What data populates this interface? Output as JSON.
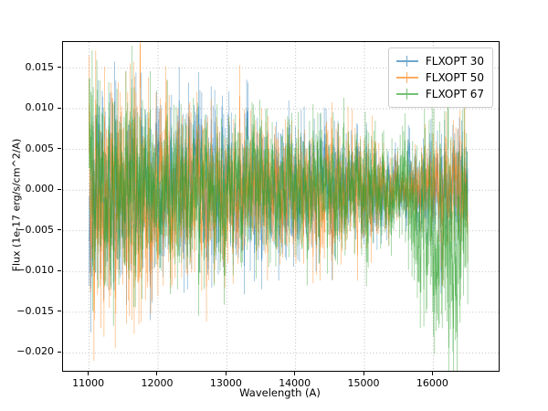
{
  "figure": {
    "background": "#ffffff",
    "spine_color": "#000000"
  },
  "chart_data": {
    "type": "line",
    "title": "",
    "xlabel": "Wavelength (A)",
    "ylabel": "Flux (1e-17 erg/s/cm^2/A)",
    "xlim": [
      10620,
      16950
    ],
    "ylim": [
      -0.0222,
      0.0182
    ],
    "x_range": [
      11000,
      16500
    ],
    "xticks": [
      11000,
      12000,
      13000,
      14000,
      15000,
      16000
    ],
    "yticks": [
      0.015,
      0.01,
      0.005,
      0.0,
      -0.005,
      -0.01,
      -0.015,
      -0.02
    ],
    "grid": true,
    "grid_color": "#b0b0b0",
    "legend_position": "upper right",
    "alpha": 0.5,
    "n_points": 640,
    "plot_style": "errorbar",
    "series": [
      {
        "name": "FLXOPT 30",
        "color": "#1f77b4",
        "seed": 11,
        "envelope": [
          [
            11000,
            0.0055
          ],
          [
            11400,
            0.0048
          ],
          [
            12000,
            0.004
          ],
          [
            12600,
            0.0042
          ],
          [
            13200,
            0.0035
          ],
          [
            14200,
            0.0033
          ],
          [
            15000,
            0.003
          ],
          [
            15500,
            0.0013
          ],
          [
            15750,
            0.0022
          ],
          [
            16000,
            0.0028
          ],
          [
            16500,
            0.003
          ]
        ],
        "bias": [
          [
            11000,
            0.0
          ],
          [
            16500,
            0.0
          ]
        ]
      },
      {
        "name": "FLXOPT 50",
        "color": "#ff7f0e",
        "seed": 52,
        "envelope": [
          [
            11000,
            0.006
          ],
          [
            11500,
            0.0062
          ],
          [
            12000,
            0.0045
          ],
          [
            12800,
            0.0042
          ],
          [
            13500,
            0.0035
          ],
          [
            14500,
            0.0032
          ],
          [
            15200,
            0.003
          ],
          [
            15550,
            0.0013
          ],
          [
            15900,
            0.0026
          ],
          [
            16200,
            0.0033
          ],
          [
            16500,
            0.003
          ]
        ],
        "bias": [
          [
            11000,
            0.0
          ],
          [
            16500,
            0.0
          ]
        ]
      },
      {
        "name": "FLXOPT 67",
        "color": "#2ca02c",
        "seed": 103,
        "envelope": [
          [
            11000,
            0.0055
          ],
          [
            11600,
            0.0052
          ],
          [
            12300,
            0.004
          ],
          [
            13000,
            0.0035
          ],
          [
            14000,
            0.0033
          ],
          [
            15000,
            0.003
          ],
          [
            15450,
            0.0024
          ],
          [
            15700,
            0.004
          ],
          [
            16000,
            0.005
          ],
          [
            16300,
            0.0055
          ],
          [
            16500,
            0.005
          ]
        ],
        "bias": [
          [
            11000,
            0.0
          ],
          [
            15500,
            0.0
          ],
          [
            15800,
            -0.004
          ],
          [
            16100,
            -0.006
          ],
          [
            16350,
            -0.007
          ],
          [
            16500,
            -0.005
          ]
        ]
      }
    ]
  }
}
